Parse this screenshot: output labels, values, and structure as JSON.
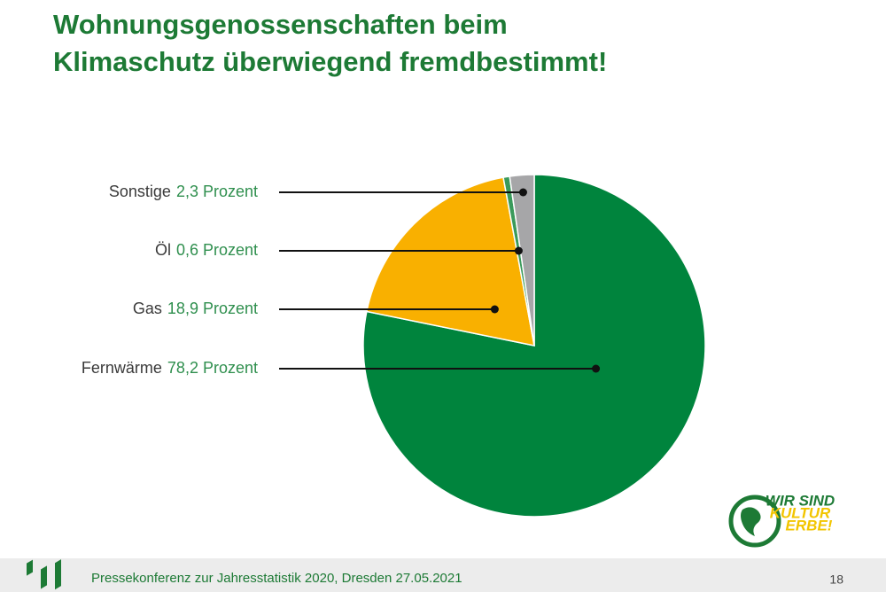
{
  "slide_title": [
    "Wohnungsgenossenschaften beim",
    "Klimaschutz überwiegend fremdbestimmt!"
  ],
  "chart_data": {
    "type": "pie",
    "categories": [
      "Fernwärme",
      "Gas",
      "Öl",
      "Sonstige"
    ],
    "values": [
      78.2,
      18.9,
      0.6,
      2.3
    ],
    "value_labels": [
      "78,2 Prozent",
      "18,9 Prozent",
      "0,6 Prozent",
      "2,3 Prozent"
    ],
    "colors": [
      "#00843d",
      "#f9b000",
      "#3a9a5b",
      "#a6a6a8"
    ]
  },
  "logo": [
    "WIR SIND",
    "KULTUR",
    "ERBE!"
  ],
  "footer": {
    "text": "Pressekonferenz zur Jahresstatistik 2020, Dresden 27.05.2021",
    "page": "18"
  }
}
